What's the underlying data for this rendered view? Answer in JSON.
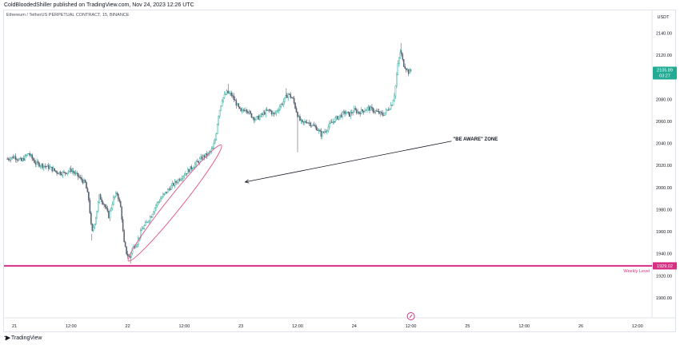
{
  "header": {
    "published_text": "ColdBloodedShiller published on TradingView.com, Nov 24, 2023 12:26 UTC"
  },
  "symbol_title": "Ethereum / TetherUS PERPETUAL CONTRACT, 15, BINANCE",
  "currency_label": "USDT",
  "footer_brand": "TradingView",
  "colors": {
    "up": "#26a69a",
    "down": "#131722",
    "candle_body": "#5a6170",
    "level": "#d62f84",
    "last_price": "#22ab94",
    "zone": "#e0608e"
  },
  "chart_data": {
    "type": "candlestick",
    "symbol": "Ethereum / TetherUS PERPETUAL CONTRACT",
    "interval": "15",
    "exchange": "BINANCE",
    "ylim": [
      1875,
      2160
    ],
    "y_ticks": [
      1900,
      1920,
      1940,
      1960,
      1980,
      2000,
      2020,
      2040,
      2060,
      2080,
      2100,
      2120,
      2140
    ],
    "y_tick_labels": [
      "1900.00",
      "1920.00",
      "1940.00",
      "1960.00",
      "1980.00",
      "2000.00",
      "2020.00",
      "2040.00",
      "2060.00",
      "2080.00",
      "2100.00",
      "2120.00",
      "2140.00"
    ],
    "x_ticks": [
      {
        "label": "21",
        "t": 0
      },
      {
        "label": "12:00",
        "t": 12
      },
      {
        "label": "22",
        "t": 24
      },
      {
        "label": "12:00",
        "t": 36
      },
      {
        "label": "23",
        "t": 48
      },
      {
        "label": "12:00",
        "t": 60
      },
      {
        "label": "24",
        "t": 72
      },
      {
        "label": "12:00",
        "t": 84
      },
      {
        "label": "25",
        "t": 96
      },
      {
        "label": "12:00",
        "t": 108
      },
      {
        "label": "26",
        "t": 120
      },
      {
        "label": "12:00",
        "t": 132
      }
    ],
    "price_path": [
      [
        -1.5,
        2026
      ],
      [
        0,
        2028
      ],
      [
        1.5,
        2024
      ],
      [
        3,
        2031
      ],
      [
        4.5,
        2022
      ],
      [
        6,
        2020
      ],
      [
        7.5,
        2018
      ],
      [
        9,
        2014
      ],
      [
        10.5,
        2013
      ],
      [
        12,
        2016
      ],
      [
        13.5,
        2010
      ],
      [
        15,
        2004
      ],
      [
        15.8,
        1988
      ],
      [
        16.4,
        1958
      ],
      [
        17.2,
        1972
      ],
      [
        18,
        1992
      ],
      [
        19,
        1985
      ],
      [
        20,
        1974
      ],
      [
        21,
        1990
      ],
      [
        21.8,
        1995
      ],
      [
        22.6,
        1980
      ],
      [
        23.2,
        1950
      ],
      [
        23.8,
        1940
      ],
      [
        24.4,
        1936
      ],
      [
        25,
        1945
      ],
      [
        26,
        1950
      ],
      [
        27,
        1962
      ],
      [
        28,
        1968
      ],
      [
        29,
        1975
      ],
      [
        30,
        1984
      ],
      [
        31,
        1990
      ],
      [
        32,
        1995
      ],
      [
        33,
        2000
      ],
      [
        34,
        2004
      ],
      [
        35,
        2008
      ],
      [
        36,
        2012
      ],
      [
        37,
        2016
      ],
      [
        38,
        2020
      ],
      [
        39,
        2024
      ],
      [
        40,
        2028
      ],
      [
        41,
        2030
      ],
      [
        42,
        2035
      ],
      [
        42.6,
        2045
      ],
      [
        43.2,
        2065
      ],
      [
        44,
        2080
      ],
      [
        45,
        2086
      ],
      [
        46,
        2084
      ],
      [
        47,
        2076
      ],
      [
        48,
        2068
      ],
      [
        49,
        2072
      ],
      [
        50,
        2066
      ],
      [
        51,
        2062
      ],
      [
        52,
        2064
      ],
      [
        53,
        2068
      ],
      [
        54,
        2070
      ],
      [
        55,
        2066
      ],
      [
        56,
        2072
      ],
      [
        57,
        2078
      ],
      [
        58,
        2085
      ],
      [
        59,
        2080
      ],
      [
        59.7,
        2070
      ],
      [
        60.3,
        2062
      ],
      [
        61,
        2058
      ],
      [
        62,
        2060
      ],
      [
        63,
        2057
      ],
      [
        64,
        2054
      ],
      [
        65,
        2048
      ],
      [
        66,
        2052
      ],
      [
        67,
        2058
      ],
      [
        68,
        2062
      ],
      [
        69,
        2065
      ],
      [
        70,
        2068
      ],
      [
        71,
        2066
      ],
      [
        72,
        2070
      ],
      [
        73,
        2068
      ],
      [
        74,
        2070
      ],
      [
        75,
        2072
      ],
      [
        76,
        2070
      ],
      [
        77,
        2068
      ],
      [
        78,
        2066
      ],
      [
        79,
        2070
      ],
      [
        80,
        2076
      ],
      [
        80.6,
        2086
      ],
      [
        81.2,
        2110
      ],
      [
        81.8,
        2124
      ],
      [
        82.4,
        2112
      ],
      [
        83,
        2108
      ],
      [
        83.6,
        2104
      ],
      [
        84,
        2106
      ]
    ],
    "wick_lows": [
      [
        60.0,
        2032
      ],
      [
        24.6,
        1931
      ],
      [
        16.4,
        1952
      ]
    ],
    "wick_highs": [
      [
        81.9,
        2131
      ],
      [
        45.3,
        2094
      ],
      [
        57.6,
        2090
      ]
    ],
    "last_price": 2105.89,
    "last_price_label": "2105.89",
    "countdown_label": "03:27",
    "weekly_level": 1929.02,
    "weekly_level_value_label": "1929.02",
    "weekly_level_label": "Weekly Level",
    "annotation_text": "\"BE AWARE\" ZONE",
    "annotation_arrow": {
      "from": [
        96,
        2042
      ],
      "to": [
        45.5,
        2005
      ]
    },
    "zone_ellipse": {
      "from": [
        25,
        1938
      ],
      "to": [
        43,
        2034
      ]
    }
  }
}
